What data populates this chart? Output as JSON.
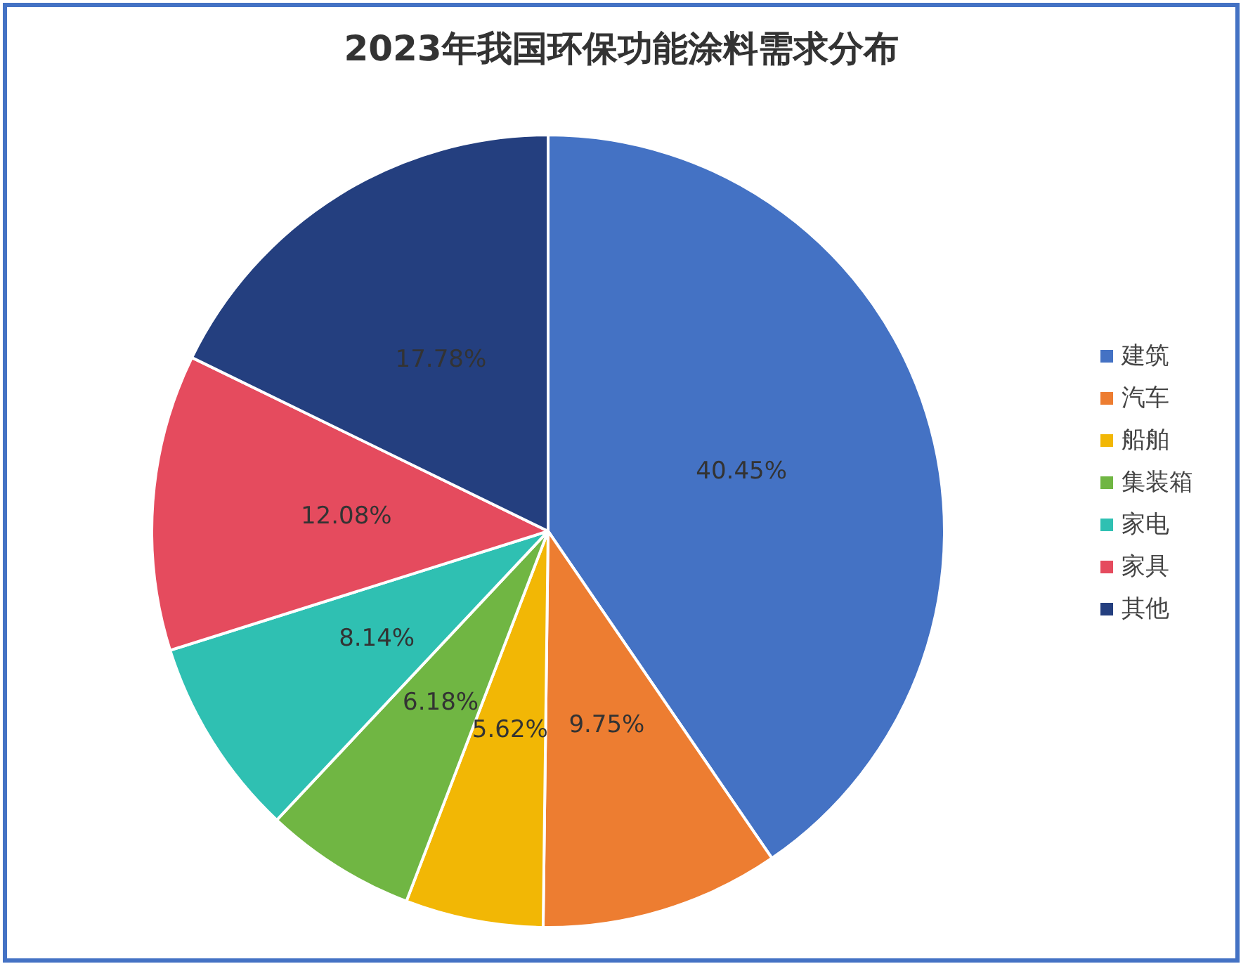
{
  "chart_data": {
    "type": "pie",
    "title": "2023年我国环保功能涂料需求分布",
    "categories": [
      "建筑",
      "汽车",
      "船舶",
      "集装箱",
      "家电",
      "家具",
      "其他"
    ],
    "values": [
      40.45,
      9.75,
      5.62,
      6.18,
      8.14,
      12.08,
      17.78
    ],
    "value_labels": [
      "40.45%",
      "9.75%",
      "5.62%",
      "6.18%",
      "8.14%",
      "12.08%",
      "17.78%"
    ],
    "colors": [
      "#4472c4",
      "#ed7d31",
      "#f2b705",
      "#70b643",
      "#2fc0b2",
      "#e54b5e",
      "#243f7f"
    ],
    "legend": "right"
  }
}
